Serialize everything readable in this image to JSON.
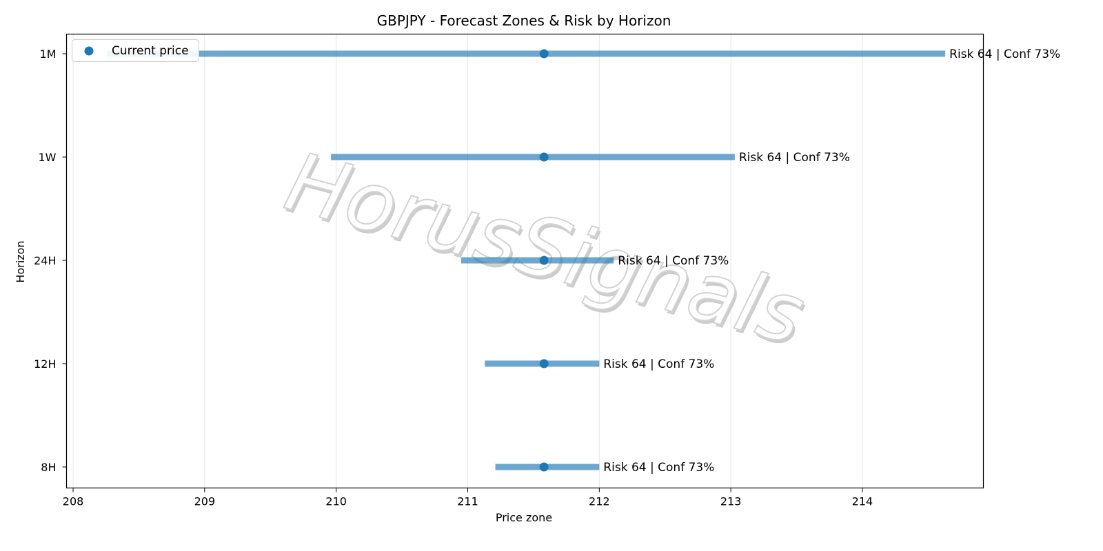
{
  "chart_data": {
    "type": "range",
    "title": "GBPJPY - Forecast Zones & Risk by Horizon",
    "xlabel": "Price zone",
    "ylabel": "Horizon",
    "xlim": [
      207.95,
      214.92
    ],
    "xticks": [
      208,
      209,
      210,
      211,
      212,
      213,
      214
    ],
    "grid": "vertical",
    "legend": {
      "placement": "top-left",
      "label": "Current price"
    },
    "horizons": [
      {
        "name": "1M",
        "low": 208.26,
        "high": 214.63,
        "current": 211.58,
        "label": "Risk 64 | Conf 73%"
      },
      {
        "name": "1W",
        "low": 209.96,
        "high": 213.03,
        "current": 211.58,
        "label": "Risk 64 | Conf 73%"
      },
      {
        "name": "24H",
        "low": 210.95,
        "high": 212.11,
        "current": 211.58,
        "label": "Risk 64 | Conf 73%"
      },
      {
        "name": "12H",
        "low": 211.13,
        "high": 212.0,
        "current": 211.58,
        "label": "Risk 64 | Conf 73%"
      },
      {
        "name": "8H",
        "low": 211.21,
        "high": 212.0,
        "current": 211.58,
        "label": "Risk 64 | Conf 73%"
      }
    ],
    "colors": {
      "bar": "#1f77b4",
      "point": "#1f77b4",
      "grid": "#e6e6e6",
      "watermark": "#d3d3d3"
    },
    "watermark": "HorusSignals"
  }
}
